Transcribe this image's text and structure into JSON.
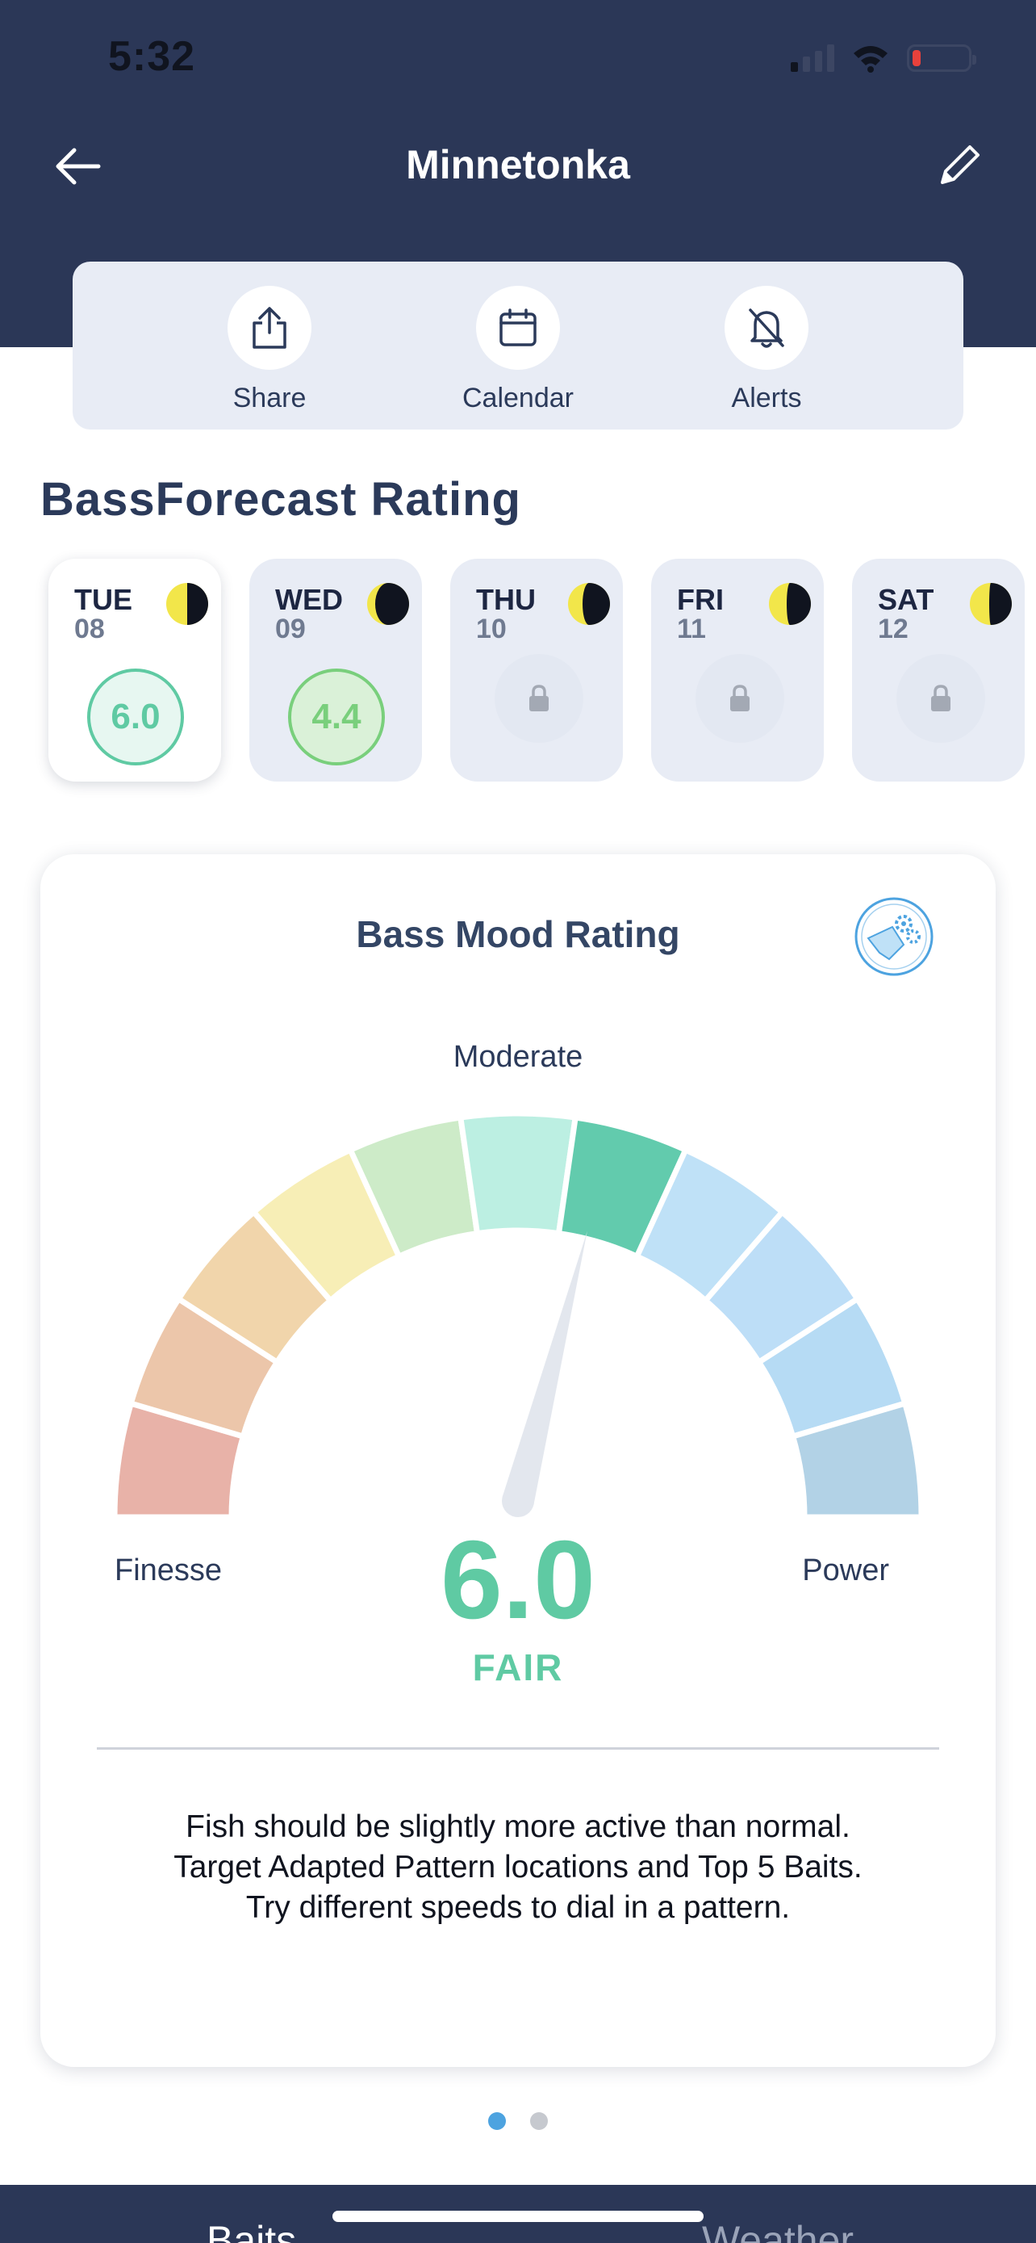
{
  "status_bar": {
    "time": "5:32",
    "battery_level": 0.15
  },
  "nav": {
    "title": "Minnetonka"
  },
  "actions": [
    {
      "label": "Share",
      "icon": "share-icon"
    },
    {
      "label": "Calendar",
      "icon": "calendar-icon"
    },
    {
      "label": "Alerts",
      "icon": "bell-off-icon"
    }
  ],
  "section": {
    "title": "BassForecast Rating"
  },
  "days": [
    {
      "name": "TUE",
      "num": "08",
      "score": "6.0",
      "locked": false,
      "selected": true
    },
    {
      "name": "WED",
      "num": "09",
      "score": "4.4",
      "locked": false,
      "selected": false
    },
    {
      "name": "THU",
      "num": "10",
      "score": "",
      "locked": true,
      "selected": false
    },
    {
      "name": "FRI",
      "num": "11",
      "score": "",
      "locked": true,
      "selected": false
    },
    {
      "name": "SAT",
      "num": "12",
      "score": "",
      "locked": true,
      "selected": false
    }
  ],
  "mood_card": {
    "title": "Bass Mood Rating",
    "top_label": "Moderate",
    "left_label": "Finesse",
    "right_label": "Power",
    "value": "6.0",
    "verdict": "FAIR",
    "needle_level": 0.58,
    "segment_colors": [
      "#e8b2a8",
      "#ecc6aa",
      "#f1d5ab",
      "#f7eeb6",
      "#cdebc8",
      "#bcefe2",
      "#62cbad",
      "#bfe1f7",
      "#bddef7",
      "#b6dbf4",
      "#b2d2e6"
    ],
    "description": [
      "Fish should be slightly more active than normal.",
      "Target Adapted Pattern locations and Top 5 Baits.",
      "Try different speeds to dial in a pattern."
    ]
  },
  "pager": {
    "count": 2,
    "active": 0
  },
  "bottom_tabs": {
    "left": "Baits",
    "right": "Weather"
  },
  "colors": {
    "header": "#2b3757",
    "accent": "#5fcaa3",
    "card_bg": "#e8ecf5"
  }
}
